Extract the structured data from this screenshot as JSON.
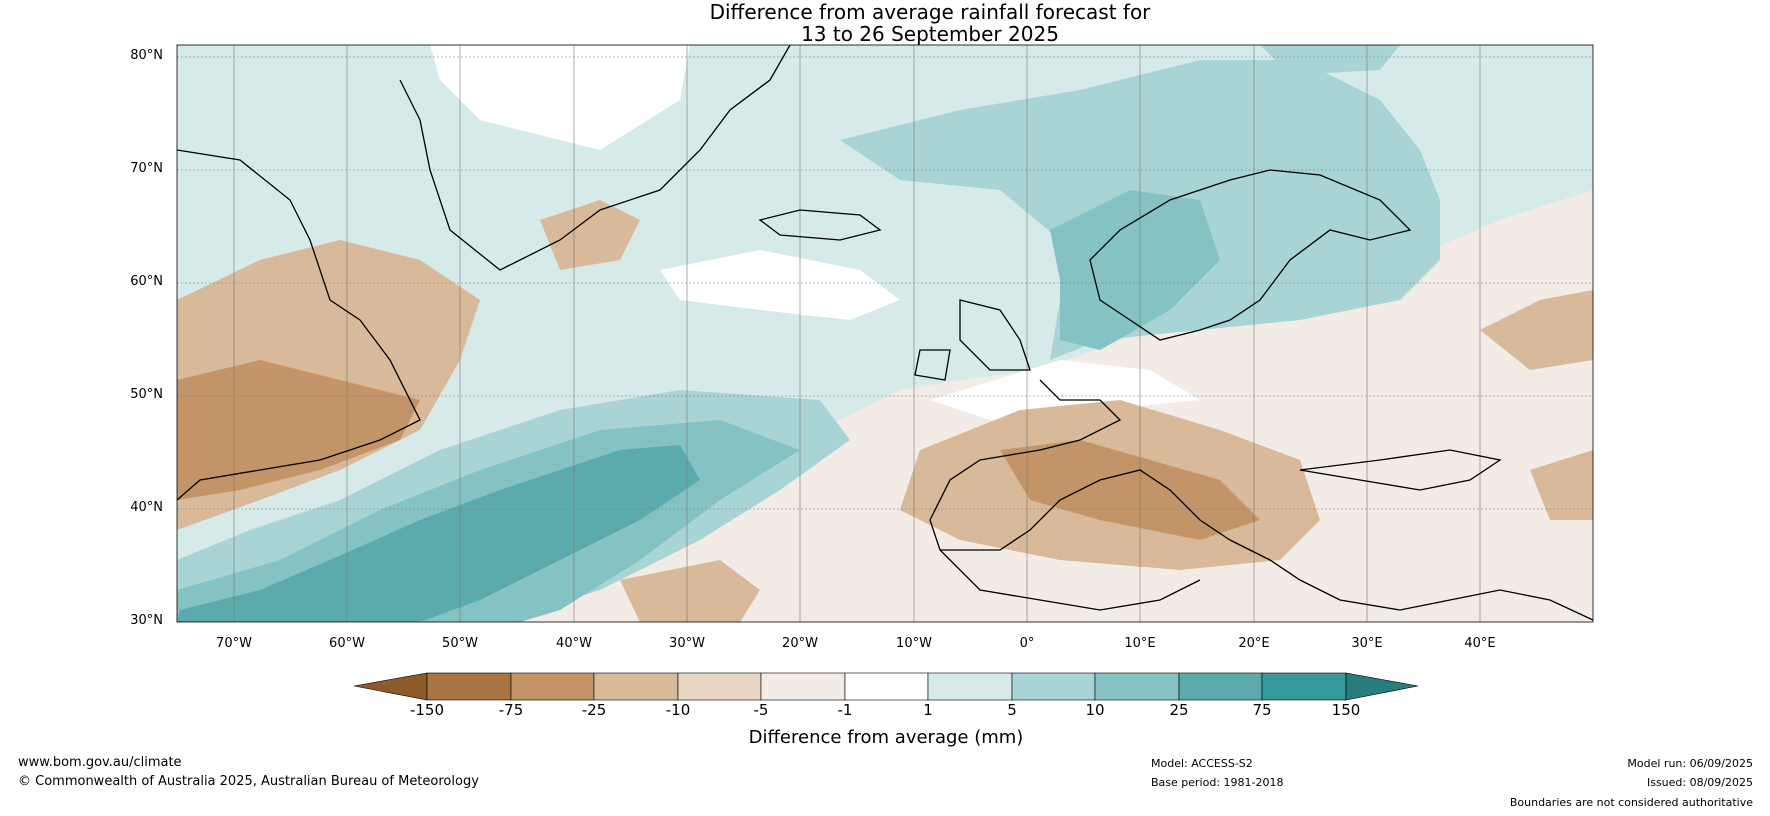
{
  "title_line1": "Difference from average rainfall forecast for",
  "title_line2": "13 to 26 September 2025",
  "lat_labels": [
    "80°N",
    "70°N",
    "60°N",
    "50°N",
    "40°N",
    "30°N"
  ],
  "lon_labels": [
    "70°W",
    "60°W",
    "50°W",
    "40°W",
    "30°W",
    "20°W",
    "10°W",
    "0°",
    "10°E",
    "20°E",
    "30°E",
    "40°E"
  ],
  "colorbar": {
    "label": "Difference from average (mm)",
    "ticks": [
      "-150",
      "-75",
      "-25",
      "-10",
      "-5",
      "-1",
      "1",
      "5",
      "10",
      "25",
      "75",
      "150"
    ],
    "colors": [
      "#8c5a2b",
      "#a97442",
      "#c39467",
      "#d8b999",
      "#e9d6c4",
      "#f3ebe6",
      "#ffffff",
      "#d6eaea",
      "#a8d4d5",
      "#84c2c3",
      "#5cabac",
      "#36999a",
      "#287c7e"
    ]
  },
  "footer": {
    "website": "www.bom.gov.au/climate",
    "copyright": "© Commonwealth of Australia 2025, Australian Bureau of Meteorology",
    "model": "Model: ACCESS-S2",
    "base_period": "Base period: 1981-2018",
    "model_run": "Model run: 06/09/2025",
    "issued": "Issued: 08/09/2025",
    "disclaimer": "Boundaries are not considered authoritative"
  }
}
